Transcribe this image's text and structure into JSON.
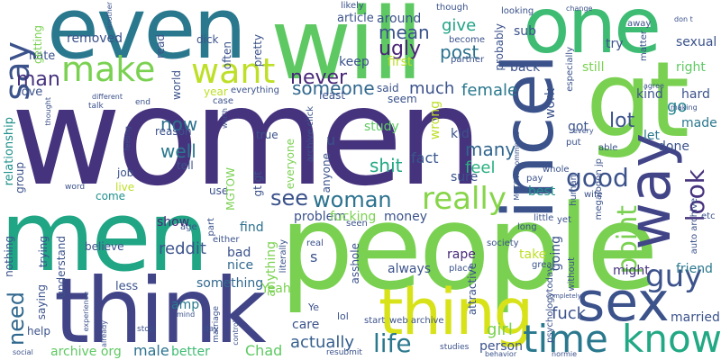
{
  "words": [
    {
      "text": "women",
      "color": "#46337e"
    },
    {
      "text": "people",
      "color": "#7ad151"
    },
    {
      "text": "even",
      "color": "#2a788e"
    },
    {
      "text": "men",
      "color": "#21a685"
    },
    {
      "text": "one",
      "color": "#3fbc73"
    },
    {
      "text": "will",
      "color": "#5ec962"
    },
    {
      "text": "gt",
      "color": "#7ad151"
    },
    {
      "text": "think",
      "color": "#414487"
    },
    {
      "text": "thing",
      "color": "#d8e219"
    },
    {
      "text": "incel",
      "color": "#3b528b"
    },
    {
      "text": "way",
      "color": "#414487"
    },
    {
      "text": "sex",
      "color": "#3b528b"
    },
    {
      "text": "know",
      "color": "#22a884"
    },
    {
      "text": "time",
      "color": "#2a788e"
    },
    {
      "text": "make",
      "color": "#7ad151"
    },
    {
      "text": "want",
      "color": "#bddf26"
    },
    {
      "text": "say",
      "color": "#3b528b"
    },
    {
      "text": "really",
      "color": "#86d549"
    },
    {
      "text": "see",
      "color": "#3b528b"
    },
    {
      "text": "woman",
      "color": "#2c728e"
    },
    {
      "text": "good",
      "color": "#3b528b"
    },
    {
      "text": "look",
      "color": "#46327e"
    },
    {
      "text": "point",
      "color": "#7ad151"
    },
    {
      "text": "guy",
      "color": "#3b528b"
    },
    {
      "text": "life",
      "color": "#2a788e"
    },
    {
      "text": "man",
      "color": "#46327e"
    },
    {
      "text": "need",
      "color": "#31688e"
    },
    {
      "text": "never",
      "color": "#482878"
    },
    {
      "text": "someone",
      "color": "#31688e"
    },
    {
      "text": "mean",
      "color": "#3b528b"
    },
    {
      "text": "ugly",
      "color": "#482475"
    },
    {
      "text": "post",
      "color": "#2c728e"
    },
    {
      "text": "give",
      "color": "#20a386"
    },
    {
      "text": "much",
      "color": "#3b528b"
    },
    {
      "text": "female",
      "color": "#2a788e"
    },
    {
      "text": "shit",
      "color": "#22a884"
    },
    {
      "text": "lot",
      "color": "#3b528b"
    },
    {
      "text": "many",
      "color": "#32658e"
    },
    {
      "text": "fact",
      "color": "#39568c"
    },
    {
      "text": "feel",
      "color": "#29af7f"
    },
    {
      "text": "well",
      "color": "#2a788e"
    },
    {
      "text": "now",
      "color": "#2c728e"
    },
    {
      "text": "go",
      "color": "#25858e"
    },
    {
      "text": "fuck",
      "color": "#3b528b"
    },
    {
      "text": "girl",
      "color": "#7ad151"
    },
    {
      "text": "actually",
      "color": "#355f8d"
    },
    {
      "text": "reddit",
      "color": "#3b528b"
    },
    {
      "text": "show",
      "color": "#482878"
    },
    {
      "text": "find",
      "color": "#2d708e"
    },
    {
      "text": "bad",
      "color": "#3b528b"
    },
    {
      "text": "nice",
      "color": "#31688e"
    },
    {
      "text": "amp",
      "color": "#2a788e"
    },
    {
      "text": "something",
      "color": "#31688e"
    },
    {
      "text": "Yeah",
      "color": "#7ad151"
    },
    {
      "text": "Chad",
      "color": "#5ec962"
    },
    {
      "text": "male",
      "color": "#2c728e"
    },
    {
      "text": "better",
      "color": "#3fbc73"
    },
    {
      "text": "archive org",
      "color": "#5ec962"
    },
    {
      "text": "care",
      "color": "#3b528b"
    },
    {
      "text": "person",
      "color": "#3b528b"
    },
    {
      "text": "anything",
      "color": "#7ad151"
    },
    {
      "text": "problem",
      "color": "#3b528b"
    },
    {
      "text": "fucking",
      "color": "#7ad151"
    },
    {
      "text": "money",
      "color": "#3b528b"
    },
    {
      "text": "going",
      "color": "#3b528b"
    },
    {
      "text": "might",
      "color": "#46327e"
    },
    {
      "text": "friend",
      "color": "#2a788e"
    },
    {
      "text": "married",
      "color": "#3b528b"
    },
    {
      "text": "take",
      "color": "#bddf26"
    },
    {
      "text": "always",
      "color": "#3b528b"
    },
    {
      "text": "rape",
      "color": "#482878"
    },
    {
      "text": "study",
      "color": "#5ec962"
    },
    {
      "text": "kid",
      "color": "#3b528b"
    },
    {
      "text": "wrong",
      "color": "#bddf26"
    },
    {
      "text": "sure",
      "color": "#3b528b"
    },
    {
      "text": "best",
      "color": "#21918c"
    },
    {
      "text": "work",
      "color": "#3b528b"
    },
    {
      "text": "still",
      "color": "#7ad151"
    },
    {
      "text": "kind",
      "color": "#3b528b"
    },
    {
      "text": "hard",
      "color": "#3b528b"
    },
    {
      "text": "made",
      "color": "#2a788e"
    },
    {
      "text": "got",
      "color": "#3b528b"
    },
    {
      "text": "let",
      "color": "#2a788e"
    },
    {
      "text": "done",
      "color": "#3b528b"
    },
    {
      "text": "right",
      "color": "#5ec962"
    },
    {
      "text": "sexual",
      "color": "#3b528b"
    },
    {
      "text": "try",
      "color": "#3b528b"
    },
    {
      "text": "sub",
      "color": "#3b528b"
    },
    {
      "text": "probably",
      "color": "#3b528b"
    },
    {
      "text": "back",
      "color": "#3b528b"
    },
    {
      "text": "around",
      "color": "#3b528b"
    },
    {
      "text": "first",
      "color": "#bddf26"
    },
    {
      "text": "keep",
      "color": "#3b528b"
    },
    {
      "text": "article",
      "color": "#3b528b"
    },
    {
      "text": "said",
      "color": "#3b528b"
    },
    {
      "text": "seem",
      "color": "#3b528b"
    },
    {
      "text": "least",
      "color": "#3b528b"
    },
    {
      "text": "removed",
      "color": "#3b528b"
    },
    {
      "text": "hate",
      "color": "#3b528b"
    },
    {
      "text": "love",
      "color": "#3b528b"
    },
    {
      "text": "getting",
      "color": "#7ad151"
    },
    {
      "text": "read",
      "color": "#3b528b"
    },
    {
      "text": "often",
      "color": "#3b528b"
    },
    {
      "text": "pretty",
      "color": "#3b528b"
    },
    {
      "text": "dick",
      "color": "#3b528b"
    },
    {
      "text": "year",
      "color": "#bddf26"
    },
    {
      "text": "world",
      "color": "#3b528b"
    },
    {
      "text": "everything",
      "color": "#3b528b"
    },
    {
      "text": "case",
      "color": "#3b528b"
    },
    {
      "text": "reason",
      "color": "#3b528b"
    },
    {
      "text": "tell",
      "color": "#3b528b"
    },
    {
      "text": "job",
      "color": "#3b528b"
    },
    {
      "text": "live",
      "color": "#bddf26"
    },
    {
      "text": "come",
      "color": "#21918c"
    },
    {
      "text": "use",
      "color": "#3b528b"
    },
    {
      "text": "MGTOW",
      "color": "#7ad151"
    },
    {
      "text": "gt gt",
      "color": "#3b528b"
    },
    {
      "text": "true",
      "color": "#3b528b"
    },
    {
      "text": "archive click",
      "color": "#3b528b"
    },
    {
      "text": "everyone",
      "color": "#7ad151"
    },
    {
      "text": "u",
      "color": "#3b528b"
    },
    {
      "text": "anyone",
      "color": "#3b528b"
    },
    {
      "text": "group",
      "color": "#3b528b"
    },
    {
      "text": "relationship",
      "color": "#21918c"
    },
    {
      "text": "trying",
      "color": "#3b528b"
    },
    {
      "text": "nothing",
      "color": "#3b528b"
    },
    {
      "text": "understand",
      "color": "#3b528b"
    },
    {
      "text": "saying",
      "color": "#3b528b"
    },
    {
      "text": "help",
      "color": "#3b528b"
    },
    {
      "text": "less",
      "color": "#3b528b"
    },
    {
      "text": "believe",
      "color": "#3b528b"
    },
    {
      "text": "part",
      "color": "#3b528b"
    },
    {
      "text": "age",
      "color": "#3b528b"
    },
    {
      "text": "either",
      "color": "#3b528b"
    },
    {
      "text": "s",
      "color": "#3b528b"
    },
    {
      "text": "asshole",
      "color": "#3b528b"
    },
    {
      "text": "real",
      "color": "#3b528b"
    },
    {
      "text": "literally",
      "color": "#3b528b"
    },
    {
      "text": "seen",
      "color": "#3b528b"
    },
    {
      "text": "attractive",
      "color": "#3b528b"
    },
    {
      "text": "place",
      "color": "#3b528b"
    },
    {
      "text": "start",
      "color": "#3b528b"
    },
    {
      "text": "web archive",
      "color": "#3b528b"
    },
    {
      "text": "lol",
      "color": "#3b528b"
    },
    {
      "text": "Ye",
      "color": "#3b528b"
    },
    {
      "text": "long",
      "color": "#3b528b"
    },
    {
      "text": "little",
      "color": "#3b528b"
    },
    {
      "text": "yet",
      "color": "#3b528b"
    },
    {
      "text": "human",
      "color": "#3b528b"
    },
    {
      "text": "megalodon jp",
      "color": "#3b528b"
    },
    {
      "text": "great",
      "color": "#3b528b"
    },
    {
      "text": "without",
      "color": "#3b528b"
    },
    {
      "text": "psychologytoday",
      "color": "#3b528b"
    },
    {
      "text": "society",
      "color": "#3b528b"
    },
    {
      "text": "auto archive",
      "color": "#3b528b"
    },
    {
      "text": "etc",
      "color": "#3b528b"
    },
    {
      "text": "wife",
      "color": "#3b528b"
    },
    {
      "text": "pay",
      "color": "#3b528b"
    },
    {
      "text": "whole",
      "color": "#3b528b"
    },
    {
      "text": "put",
      "color": "#3b528b"
    },
    {
      "text": "able",
      "color": "#3b528b"
    },
    {
      "text": "especially",
      "color": "#3b528b"
    },
    {
      "text": "matter",
      "color": "#3b528b"
    },
    {
      "text": "away",
      "color": "#3b528b"
    },
    {
      "text": "looking",
      "color": "#3b528b"
    },
    {
      "text": "become",
      "color": "#3b528b"
    },
    {
      "text": "partner",
      "color": "#3b528b"
    },
    {
      "text": "likely",
      "color": "#3b528b"
    },
    {
      "text": "though",
      "color": "#3b528b"
    },
    {
      "text": "another",
      "color": "#3b528b"
    },
    {
      "text": "thought",
      "color": "#3b528b"
    },
    {
      "text": "different",
      "color": "#3b528b"
    },
    {
      "text": "talk",
      "color": "#3b528b"
    },
    {
      "text": "end",
      "color": "#3b528b"
    },
    {
      "text": "feeling",
      "color": "#3b528b"
    },
    {
      "text": "word",
      "color": "#3b528b"
    },
    {
      "text": "making",
      "color": "#3b528b"
    },
    {
      "text": "agree",
      "color": "#3b528b"
    },
    {
      "text": "every",
      "color": "#3b528b"
    },
    {
      "text": "change",
      "color": "#3b528b"
    },
    {
      "text": "don t",
      "color": "#3b528b"
    },
    {
      "text": "MGTOW comments",
      "color": "#3b528b"
    },
    {
      "text": "worth",
      "color": "#3b528b"
    },
    {
      "text": "experience",
      "color": "#3b528b"
    },
    {
      "text": "already",
      "color": "#3b528b"
    },
    {
      "text": "mind",
      "color": "#3b528b"
    },
    {
      "text": "marriage",
      "color": "#3b528b"
    },
    {
      "text": "control",
      "color": "#3b528b"
    },
    {
      "text": "stop",
      "color": "#3b528b"
    },
    {
      "text": "day",
      "color": "#3b528b"
    },
    {
      "text": "resubmit",
      "color": "#3b528b"
    },
    {
      "text": "social",
      "color": "#3b528b"
    },
    {
      "text": "studies",
      "color": "#3b528b"
    },
    {
      "text": "behavior",
      "color": "#3b528b"
    },
    {
      "text": "normie",
      "color": "#3b528b"
    },
    {
      "text": "completely",
      "color": "#3b528b"
    }
  ]
}
